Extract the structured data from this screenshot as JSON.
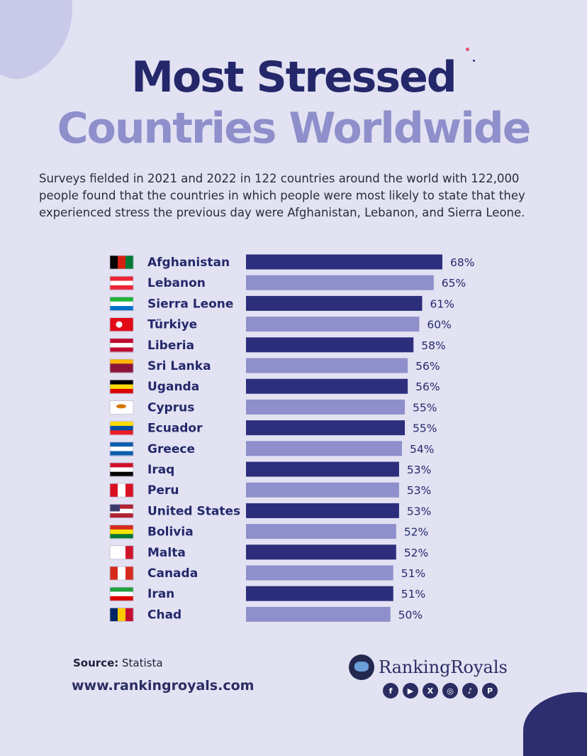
{
  "title_line1": "Most Stressed",
  "title_line2": "Countries Worldwide",
  "description": "Surveys fielded in 2021 and 2022 in 122 countries around the world with 122,000 people found that the countries in which people were most likely to state that they experienced stress the previous day were Afghanistan, Lebanon, and Sierra Leone.",
  "colors": {
    "dark_bar": "#2c2e7c",
    "light_bar": "#8f8fcb",
    "title_dark": "#24286a",
    "background": "#e2e2f3"
  },
  "chart_data": {
    "type": "bar",
    "orientation": "horizontal",
    "title": "Most Stressed Countries Worldwide",
    "categories": [
      "Afghanistan",
      "Lebanon",
      "Sierra Leone",
      "Türkiye",
      "Liberia",
      "Sri Lanka",
      "Uganda",
      "Cyprus",
      "Ecuador",
      "Greece",
      "Iraq",
      "Peru",
      "United States",
      "Bolivia",
      "Malta",
      "Canada",
      "Iran",
      "Chad"
    ],
    "values": [
      68,
      65,
      61,
      60,
      58,
      56,
      56,
      55,
      55,
      54,
      53,
      53,
      53,
      52,
      52,
      51,
      51,
      50
    ],
    "labels": [
      "68%",
      "65%",
      "61%",
      "60%",
      "58%",
      "56%",
      "56%",
      "55%",
      "55%",
      "54%",
      "53%",
      "53%",
      "53%",
      "52%",
      "52%",
      "51%",
      "51%",
      "50%"
    ],
    "unit": "%",
    "xlim": [
      0,
      68
    ],
    "flag_icons": [
      "afghanistan-flag-icon",
      "lebanon-flag-icon",
      "sierra-leone-flag-icon",
      "turkiye-flag-icon",
      "liberia-flag-icon",
      "sri-lanka-flag-icon",
      "uganda-flag-icon",
      "cyprus-flag-icon",
      "ecuador-flag-icon",
      "greece-flag-icon",
      "iraq-flag-icon",
      "peru-flag-icon",
      "united-states-flag-icon",
      "bolivia-flag-icon",
      "malta-flag-icon",
      "canada-flag-icon",
      "iran-flag-icon",
      "chad-flag-icon"
    ]
  },
  "footer": {
    "source_label": "Source:",
    "source_value": "Statista",
    "website": "www.rankingroyals.com",
    "brand": "RankingRoyals",
    "social_icons": [
      "facebook-icon",
      "youtube-icon",
      "x-icon",
      "instagram-icon",
      "tiktok-icon",
      "pinterest-icon"
    ]
  }
}
